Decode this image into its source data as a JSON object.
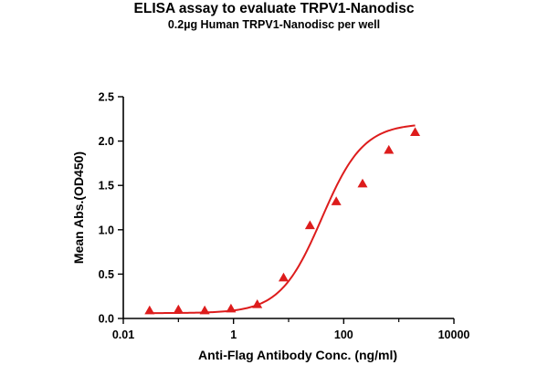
{
  "chart_data": {
    "type": "scatter",
    "title": "ELISA assay to evaluate TRPV1-Nanodisc",
    "subtitle": "0.2µg Human TRPV1-Nanodisc per well",
    "xlabel": "Anti-Flag Antibody Conc. (ng/ml)",
    "ylabel": "Mean Abs.(OD450)",
    "x_scale": "log",
    "xlim": [
      0.01,
      10000
    ],
    "ylim": [
      0,
      2.5
    ],
    "x_ticks": [
      0.01,
      1,
      100,
      10000
    ],
    "x_tick_labels": [
      "0.01",
      "1",
      "100",
      "10000"
    ],
    "y_ticks": [
      0,
      0.5,
      1,
      1.5,
      2,
      2.5
    ],
    "y_tick_labels": [
      "0.0",
      "0.5",
      "1.0",
      "1.5",
      "2.0",
      "2.5"
    ],
    "grid": false,
    "color": "#dd1c1c",
    "marker": "triangle",
    "series": [
      {
        "x": [
          0.03,
          0.1,
          0.3,
          0.9,
          2.7,
          8.1,
          24.4,
          73.2,
          219.7,
          659,
          1977
        ],
        "y": [
          0.09,
          0.1,
          0.09,
          0.11,
          0.16,
          0.46,
          1.05,
          1.32,
          1.52,
          1.9,
          2.1
        ]
      }
    ],
    "fit_curve": {
      "model": "4PL",
      "bottom": 0.06,
      "top": 2.2,
      "ec50": 40,
      "hill": 1.15
    }
  }
}
